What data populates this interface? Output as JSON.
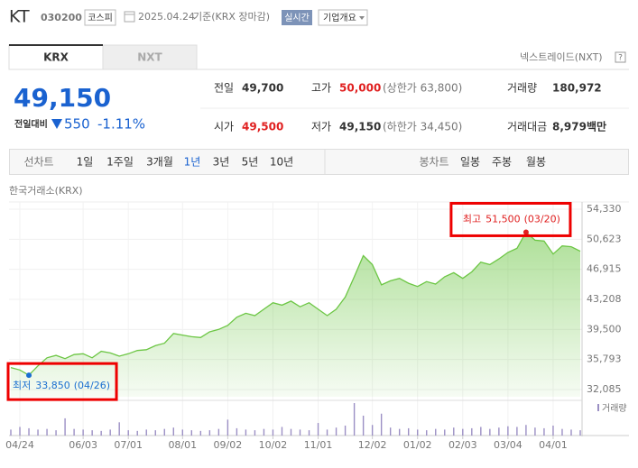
{
  "header": {
    "name": "KT",
    "code": "030200",
    "market": "코스피",
    "date": "2025.04.24",
    "basis": "기준(KRX 장마감)",
    "realtime": "실시간",
    "company_info": "기업개요"
  },
  "tabs": [
    "KRX",
    "NXT"
  ],
  "nxt_link": "넥스트레이드(NXT)",
  "help": "?",
  "price": {
    "current": "49,150",
    "change_label": "전일대비",
    "change": "550",
    "change_pct": "-1.11%"
  },
  "stats": [
    [
      {
        "label": "전일",
        "value": "49,700"
      },
      {
        "label": "고가",
        "value": "50,000",
        "note": "(상한가 63,800)"
      },
      {
        "label": "거래량",
        "value": "180,972"
      }
    ],
    [
      {
        "label": "시가",
        "value": "49,500"
      },
      {
        "label": "저가",
        "value": "49,150",
        "note": "(하한가 34,450)"
      },
      {
        "label": "거래대금",
        "value": "8,979",
        "unit": "백만"
      }
    ]
  ],
  "periods": {
    "line_label": "선차트",
    "line": [
      "1일",
      "1주일",
      "3개월",
      "1년",
      "3년",
      "5년",
      "10년"
    ],
    "candle_label": "봉차트",
    "candle": [
      "일봉",
      "주봉",
      "월봉"
    ]
  },
  "chart_data": {
    "type": "area",
    "source": "한국거래소(KRX)",
    "categories": [
      null,
      "04/24",
      null,
      null,
      null,
      null,
      null,
      null,
      "06/03",
      null,
      null,
      null,
      null,
      "07/01",
      null,
      null,
      null,
      null,
      null,
      "08/01",
      null,
      null,
      null,
      null,
      "09/02",
      null,
      null,
      null,
      null,
      "10/02",
      null,
      null,
      null,
      null,
      "11/01",
      null,
      null,
      null,
      null,
      null,
      "12/02",
      null,
      null,
      null,
      null,
      "01/02",
      null,
      null,
      null,
      null,
      "02/03",
      null,
      null,
      null,
      null,
      "03/04",
      null,
      null,
      null,
      null,
      "04/01",
      null,
      null,
      null
    ],
    "series": [
      {
        "color": "#6cc644",
        "values": [
          34800,
          34500,
          33850,
          35000,
          36000,
          36300,
          35900,
          36400,
          36500,
          36000,
          36800,
          36600,
          36200,
          36500,
          36900,
          37000,
          37500,
          37800,
          39000,
          38800,
          38600,
          38500,
          39200,
          39500,
          40000,
          41000,
          41500,
          41200,
          42000,
          42800,
          42500,
          43000,
          42300,
          42800,
          42000,
          41200,
          42000,
          43500,
          46000,
          48600,
          47500,
          45000,
          45500,
          45800,
          45200,
          44800,
          45400,
          45100,
          46000,
          46500,
          45800,
          46600,
          47800,
          47500,
          48200,
          49000,
          49500,
          51500,
          50500,
          50400,
          48800,
          49800,
          49700,
          49150
        ]
      }
    ],
    "volume": {
      "label": "거래량",
      "color": "#9b8fc4",
      "values": [
        900000,
        1300000,
        1100000,
        900000,
        1000000,
        800000,
        2600000,
        1000000,
        900000,
        800000,
        700000,
        900000,
        2000000,
        800000,
        700000,
        900000,
        800000,
        1000000,
        1200000,
        900000,
        800000,
        700000,
        800000,
        1000000,
        2400000,
        1100000,
        900000,
        800000,
        1000000,
        900000,
        1300000,
        1000000,
        900000,
        800000,
        1900000,
        900000,
        1200000,
        1500000,
        4900000,
        3000000,
        1600000,
        3300000,
        1200000,
        1000000,
        1100000,
        900000,
        800000,
        1000000,
        900000,
        1200000,
        1000000,
        1100000,
        1300000,
        1000000,
        1200000,
        1400000,
        1300000,
        1600000,
        1200000,
        1100000,
        1500000,
        1000000,
        900000,
        800000
      ]
    },
    "ylim": [
      32085,
      54330
    ],
    "yticks": [
      {
        "value": 32085,
        "label": "32,085"
      },
      {
        "value": 35793,
        "label": "35,793"
      },
      {
        "value": 39500,
        "label": "39,500"
      },
      {
        "value": 43208,
        "label": "43,208"
      },
      {
        "value": 46915,
        "label": "46,915"
      },
      {
        "value": 50623,
        "label": "50,623"
      },
      {
        "value": 54330,
        "label": "54,330"
      }
    ],
    "grid": true,
    "annotations": [
      {
        "kind": "max",
        "index": 57,
        "label": "최고",
        "value": 51500,
        "value_label": "51,500",
        "date": "(03/20)",
        "color": "#e02020"
      },
      {
        "kind": "min",
        "index": 2,
        "label": "최저",
        "value": 33850,
        "value_label": "33,850",
        "date": "(04/26)",
        "color": "#1a6fd0"
      }
    ]
  }
}
